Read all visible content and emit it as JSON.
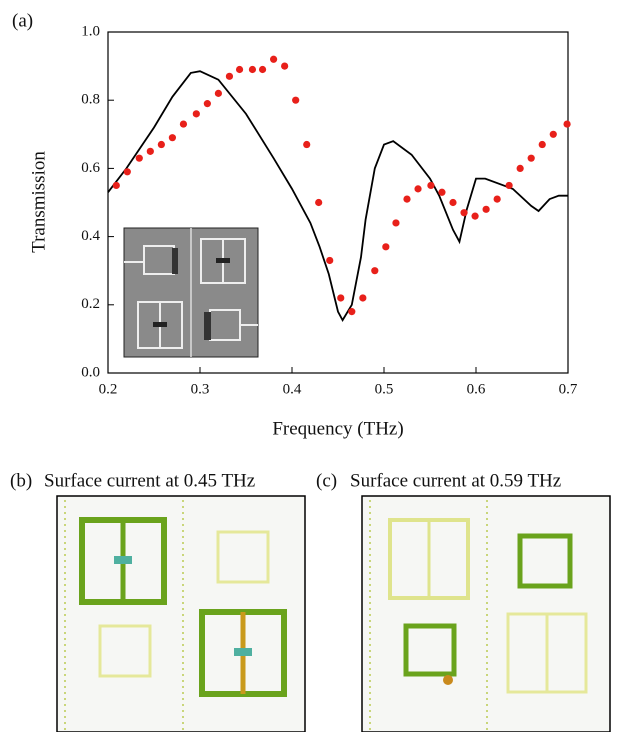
{
  "chart_data": {
    "type": "line",
    "panel_label": "(a)",
    "x_label": "Frequency (THz)",
    "y_label": "Transmission",
    "xlim": [
      0.2,
      0.7
    ],
    "xticks": [
      0.2,
      0.3,
      0.4,
      0.5,
      0.6,
      0.7
    ],
    "ylim": [
      0,
      1
    ],
    "yticks": [
      {
        "value": 0,
        "label": "0.0"
      },
      0.2,
      0.4,
      0.6,
      0.8,
      {
        "value": 1,
        "label": "1.0"
      }
    ],
    "series": [
      {
        "color": "#000000",
        "marker": "none",
        "x": [
          0.2,
          0.22,
          0.25,
          0.27,
          0.29,
          0.3,
          0.32,
          0.35,
          0.38,
          0.4,
          0.42,
          0.43,
          0.44,
          0.45,
          0.455,
          0.465,
          0.475,
          0.48,
          0.49,
          0.5,
          0.51,
          0.53,
          0.55,
          0.56,
          0.575,
          0.582,
          0.59,
          0.6,
          0.61,
          0.64,
          0.66,
          0.668,
          0.68,
          0.69,
          0.7
        ],
        "values": [
          0.53,
          0.6,
          0.72,
          0.81,
          0.88,
          0.885,
          0.86,
          0.76,
          0.63,
          0.54,
          0.44,
          0.37,
          0.29,
          0.18,
          0.155,
          0.2,
          0.34,
          0.45,
          0.6,
          0.67,
          0.68,
          0.64,
          0.57,
          0.52,
          0.42,
          0.385,
          0.48,
          0.57,
          0.57,
          0.54,
          0.49,
          0.475,
          0.51,
          0.52,
          0.52
        ]
      },
      {
        "color": "#e8201a",
        "marker": "circle",
        "x": [
          0.209,
          0.221,
          0.234,
          0.246,
          0.258,
          0.27,
          0.282,
          0.296,
          0.308,
          0.32,
          0.332,
          0.343,
          0.357,
          0.368,
          0.38,
          0.392,
          0.404,
          0.416,
          0.429,
          0.441,
          0.453,
          0.465,
          0.477,
          0.49,
          0.502,
          0.513,
          0.525,
          0.537,
          0.551,
          0.563,
          0.575,
          0.587,
          0.599,
          0.611,
          0.623,
          0.636,
          0.648,
          0.66,
          0.672,
          0.684,
          0.699
        ],
        "values": [
          0.55,
          0.59,
          0.63,
          0.65,
          0.67,
          0.69,
          0.73,
          0.76,
          0.79,
          0.82,
          0.87,
          0.89,
          0.89,
          0.89,
          0.92,
          0.9,
          0.8,
          0.67,
          0.5,
          0.33,
          0.22,
          0.18,
          0.22,
          0.3,
          0.37,
          0.44,
          0.51,
          0.54,
          0.55,
          0.53,
          0.5,
          0.47,
          0.46,
          0.48,
          0.51,
          0.55,
          0.6,
          0.63,
          0.67,
          0.7,
          0.73
        ]
      }
    ]
  },
  "panels": [
    {
      "label": "(b)",
      "caption": "Surface current at 0.45 THz"
    },
    {
      "label": "(c)",
      "caption": "Surface current at 0.59 THz"
    }
  ]
}
